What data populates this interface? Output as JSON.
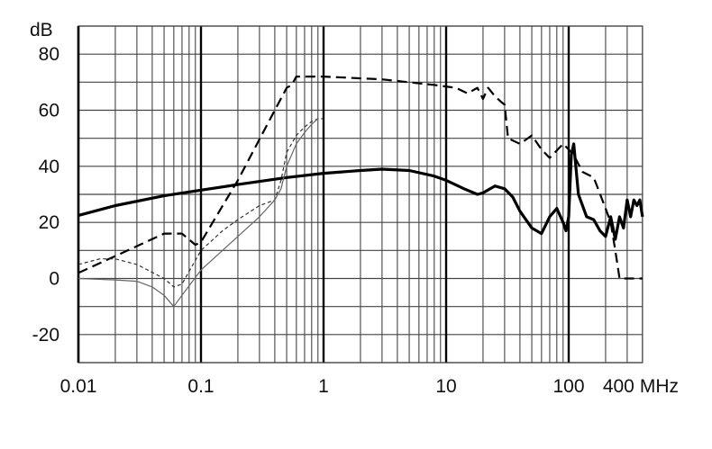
{
  "chart_data": {
    "type": "line",
    "title": "",
    "ylabel": "dB",
    "xlabel": "MHz",
    "xscale": "log",
    "xlim": [
      0.01,
      400
    ],
    "ylim": [
      -30,
      90
    ],
    "grid": true,
    "x_ticks": [
      {
        "value": 0.01,
        "label": "0.01"
      },
      {
        "value": 0.1,
        "label": "0.1"
      },
      {
        "value": 1,
        "label": "1"
      },
      {
        "value": 10,
        "label": "10"
      },
      {
        "value": 100,
        "label": "100"
      },
      {
        "value": 400,
        "label": "400"
      }
    ],
    "y_ticks": [
      {
        "value": 80,
        "label": "80"
      },
      {
        "value": 60,
        "label": "60"
      },
      {
        "value": 40,
        "label": "40"
      },
      {
        "value": 20,
        "label": "20"
      },
      {
        "value": 0,
        "label": "0"
      },
      {
        "value": -20,
        "label": "-20"
      }
    ],
    "series": [
      {
        "style": "thick-solid",
        "color": "#000000",
        "x": [
          0.01,
          0.02,
          0.05,
          0.1,
          0.2,
          0.5,
          1,
          2,
          3,
          5,
          8,
          10,
          14,
          18,
          20,
          25,
          30,
          35,
          40,
          50,
          60,
          70,
          80,
          90,
          95,
          100,
          105,
          110,
          120,
          140,
          160,
          180,
          200,
          220,
          240,
          260,
          280,
          300,
          320,
          340,
          360,
          380,
          400
        ],
        "y": [
          22.5,
          26,
          29.5,
          31.5,
          33.5,
          36,
          37.5,
          38.5,
          39,
          38.5,
          36.5,
          35,
          32,
          30,
          30.5,
          33,
          32,
          29,
          24,
          18,
          16,
          22,
          25,
          20,
          17,
          22,
          44,
          48,
          30,
          22,
          21,
          17,
          15,
          22,
          14,
          22,
          18,
          28,
          22,
          28,
          26,
          28,
          22
        ]
      },
      {
        "style": "long-dash",
        "color": "#000000",
        "x": [
          0.01,
          0.02,
          0.05,
          0.07,
          0.09,
          0.1,
          0.2,
          0.4,
          0.5,
          0.55,
          0.6,
          1,
          3,
          8,
          12,
          15,
          18,
          20,
          22,
          25,
          28,
          30,
          32,
          40,
          50,
          60,
          70,
          90,
          100,
          110,
          130,
          160,
          200,
          220,
          240,
          260,
          400
        ],
        "y": [
          2,
          8,
          16,
          16,
          12,
          13,
          35,
          60,
          68,
          69,
          72,
          72,
          71,
          69,
          68,
          66,
          68,
          64,
          68,
          65,
          63,
          62,
          50,
          48,
          51,
          46,
          43,
          48,
          46,
          44,
          38,
          36,
          25,
          20,
          10,
          0,
          0
        ]
      },
      {
        "style": "short-dash",
        "color": "#333333",
        "x": [
          0.01,
          0.015,
          0.02,
          0.03,
          0.05,
          0.06,
          0.07,
          0.1,
          0.15,
          0.2,
          0.3,
          0.4,
          0.45,
          0.5,
          0.6,
          0.7,
          0.8,
          0.9,
          1
        ],
        "y": [
          5,
          7,
          7,
          5,
          0,
          -3,
          -2,
          10,
          17,
          21,
          26,
          28,
          35,
          45,
          51,
          54,
          56,
          57,
          57
        ]
      },
      {
        "style": "thin-solid",
        "color": "#666666",
        "x": [
          0.01,
          0.02,
          0.03,
          0.04,
          0.05,
          0.06,
          0.07,
          0.1,
          0.15,
          0.2,
          0.3,
          0.4,
          0.45,
          0.5,
          0.6,
          0.7,
          0.8,
          0.9
        ],
        "y": [
          0,
          -0.5,
          -1,
          -3,
          -6,
          -10,
          -6,
          3,
          10,
          15,
          22,
          28,
          32,
          40,
          48,
          52,
          55,
          57
        ]
      }
    ]
  }
}
